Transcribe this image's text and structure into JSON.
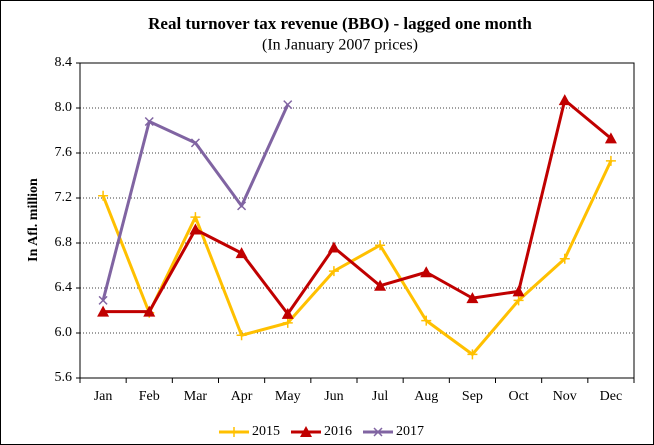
{
  "chart_data": {
    "type": "line",
    "title": "Real turnover tax revenue (BBO) - lagged one month",
    "subtitle": "(In January 2007 prices)",
    "y_label": "In Afl. million",
    "categories": [
      "Jan",
      "Feb",
      "Mar",
      "Apr",
      "May",
      "Jun",
      "Jul",
      "Aug",
      "Sep",
      "Oct",
      "Nov",
      "Dec"
    ],
    "series": [
      {
        "name": "2015",
        "color": "#ffc000",
        "marker": "plus",
        "values": [
          7.22,
          6.18,
          7.03,
          5.98,
          6.09,
          6.55,
          6.78,
          6.11,
          5.81,
          6.29,
          6.66,
          7.53
        ]
      },
      {
        "name": "2016",
        "color": "#c00000",
        "marker": "triangle",
        "values": [
          6.19,
          6.19,
          6.92,
          6.71,
          6.17,
          6.76,
          6.42,
          6.54,
          6.31,
          6.37,
          8.07,
          7.73
        ]
      },
      {
        "name": "2017",
        "color": "#8064a2",
        "marker": "x",
        "values": [
          6.29,
          7.88,
          7.69,
          7.13,
          8.03,
          null,
          null,
          null,
          null,
          null,
          null,
          null
        ]
      }
    ],
    "ylim": [
      5.6,
      8.4
    ],
    "yticks": [
      5.6,
      {
        "value": 6,
        "label": "6.0"
      },
      6.4,
      6.8,
      7.2,
      7.6,
      {
        "value": 8,
        "label": "8.0"
      },
      8.4
    ],
    "grid": true,
    "legend": "bottom"
  }
}
